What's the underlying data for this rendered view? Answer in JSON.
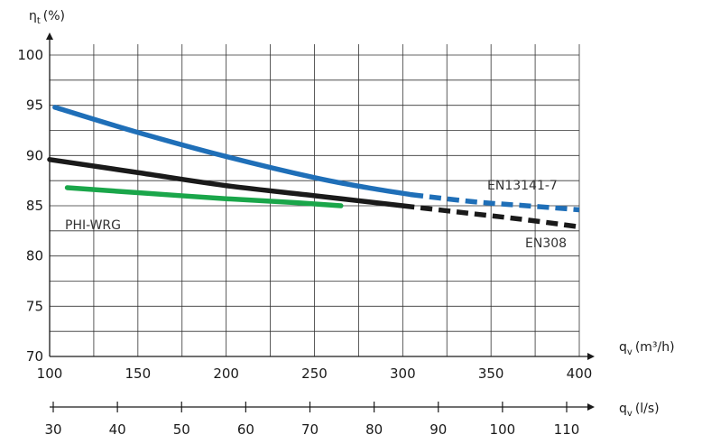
{
  "chart_data": {
    "type": "line",
    "y_axis": {
      "label": "η",
      "label_sub": "t",
      "label_unit": "(%)",
      "ticks": [
        "70",
        "75",
        "80",
        "85",
        "90",
        "95",
        "100"
      ],
      "range": [
        70,
        100
      ],
      "tick_values": [
        70,
        75,
        80,
        85,
        90,
        95,
        100
      ]
    },
    "x_axis": {
      "label": "q",
      "label_sub": "v",
      "label_unit": "(m³/h)",
      "ticks": [
        "100",
        "150",
        "200",
        "250",
        "300",
        "350",
        "400"
      ],
      "tick_values": [
        100,
        150,
        200,
        250,
        300,
        350,
        400
      ],
      "range": [
        100,
        400
      ]
    },
    "x_axis_secondary": {
      "label": "q",
      "label_sub": "v",
      "label_unit": "(l/s)",
      "ticks": [
        "30",
        "40",
        "50",
        "60",
        "70",
        "80",
        "90",
        "100",
        "110"
      ],
      "tick_values": [
        30,
        40,
        50,
        60,
        70,
        80,
        90,
        100,
        110
      ]
    },
    "grid": true,
    "series": [
      {
        "name": "EN13141-7",
        "color": "#1f6fb8",
        "x": [
          103,
          150,
          200,
          250,
          280,
          305
        ],
        "y": [
          94.8,
          92.3,
          89.9,
          87.8,
          86.8,
          86.1
        ],
        "dashed_x": [
          305,
          340,
          370,
          400
        ],
        "dashed_y": [
          86.1,
          85.4,
          85.0,
          84.6
        ]
      },
      {
        "name": "EN308",
        "color": "#1a1a1a",
        "x": [
          100,
          150,
          200,
          250,
          300
        ],
        "y": [
          89.6,
          88.3,
          87.0,
          86.0,
          85.0
        ],
        "dashed_x": [
          300,
          340,
          370,
          400
        ],
        "dashed_y": [
          85.0,
          84.2,
          83.6,
          82.9
        ]
      },
      {
        "name": "PHI-WRG",
        "color": "#1aa64a",
        "x": [
          110,
          150,
          200,
          240,
          265
        ],
        "y": [
          86.8,
          86.3,
          85.7,
          85.3,
          85.0
        ]
      }
    ]
  }
}
